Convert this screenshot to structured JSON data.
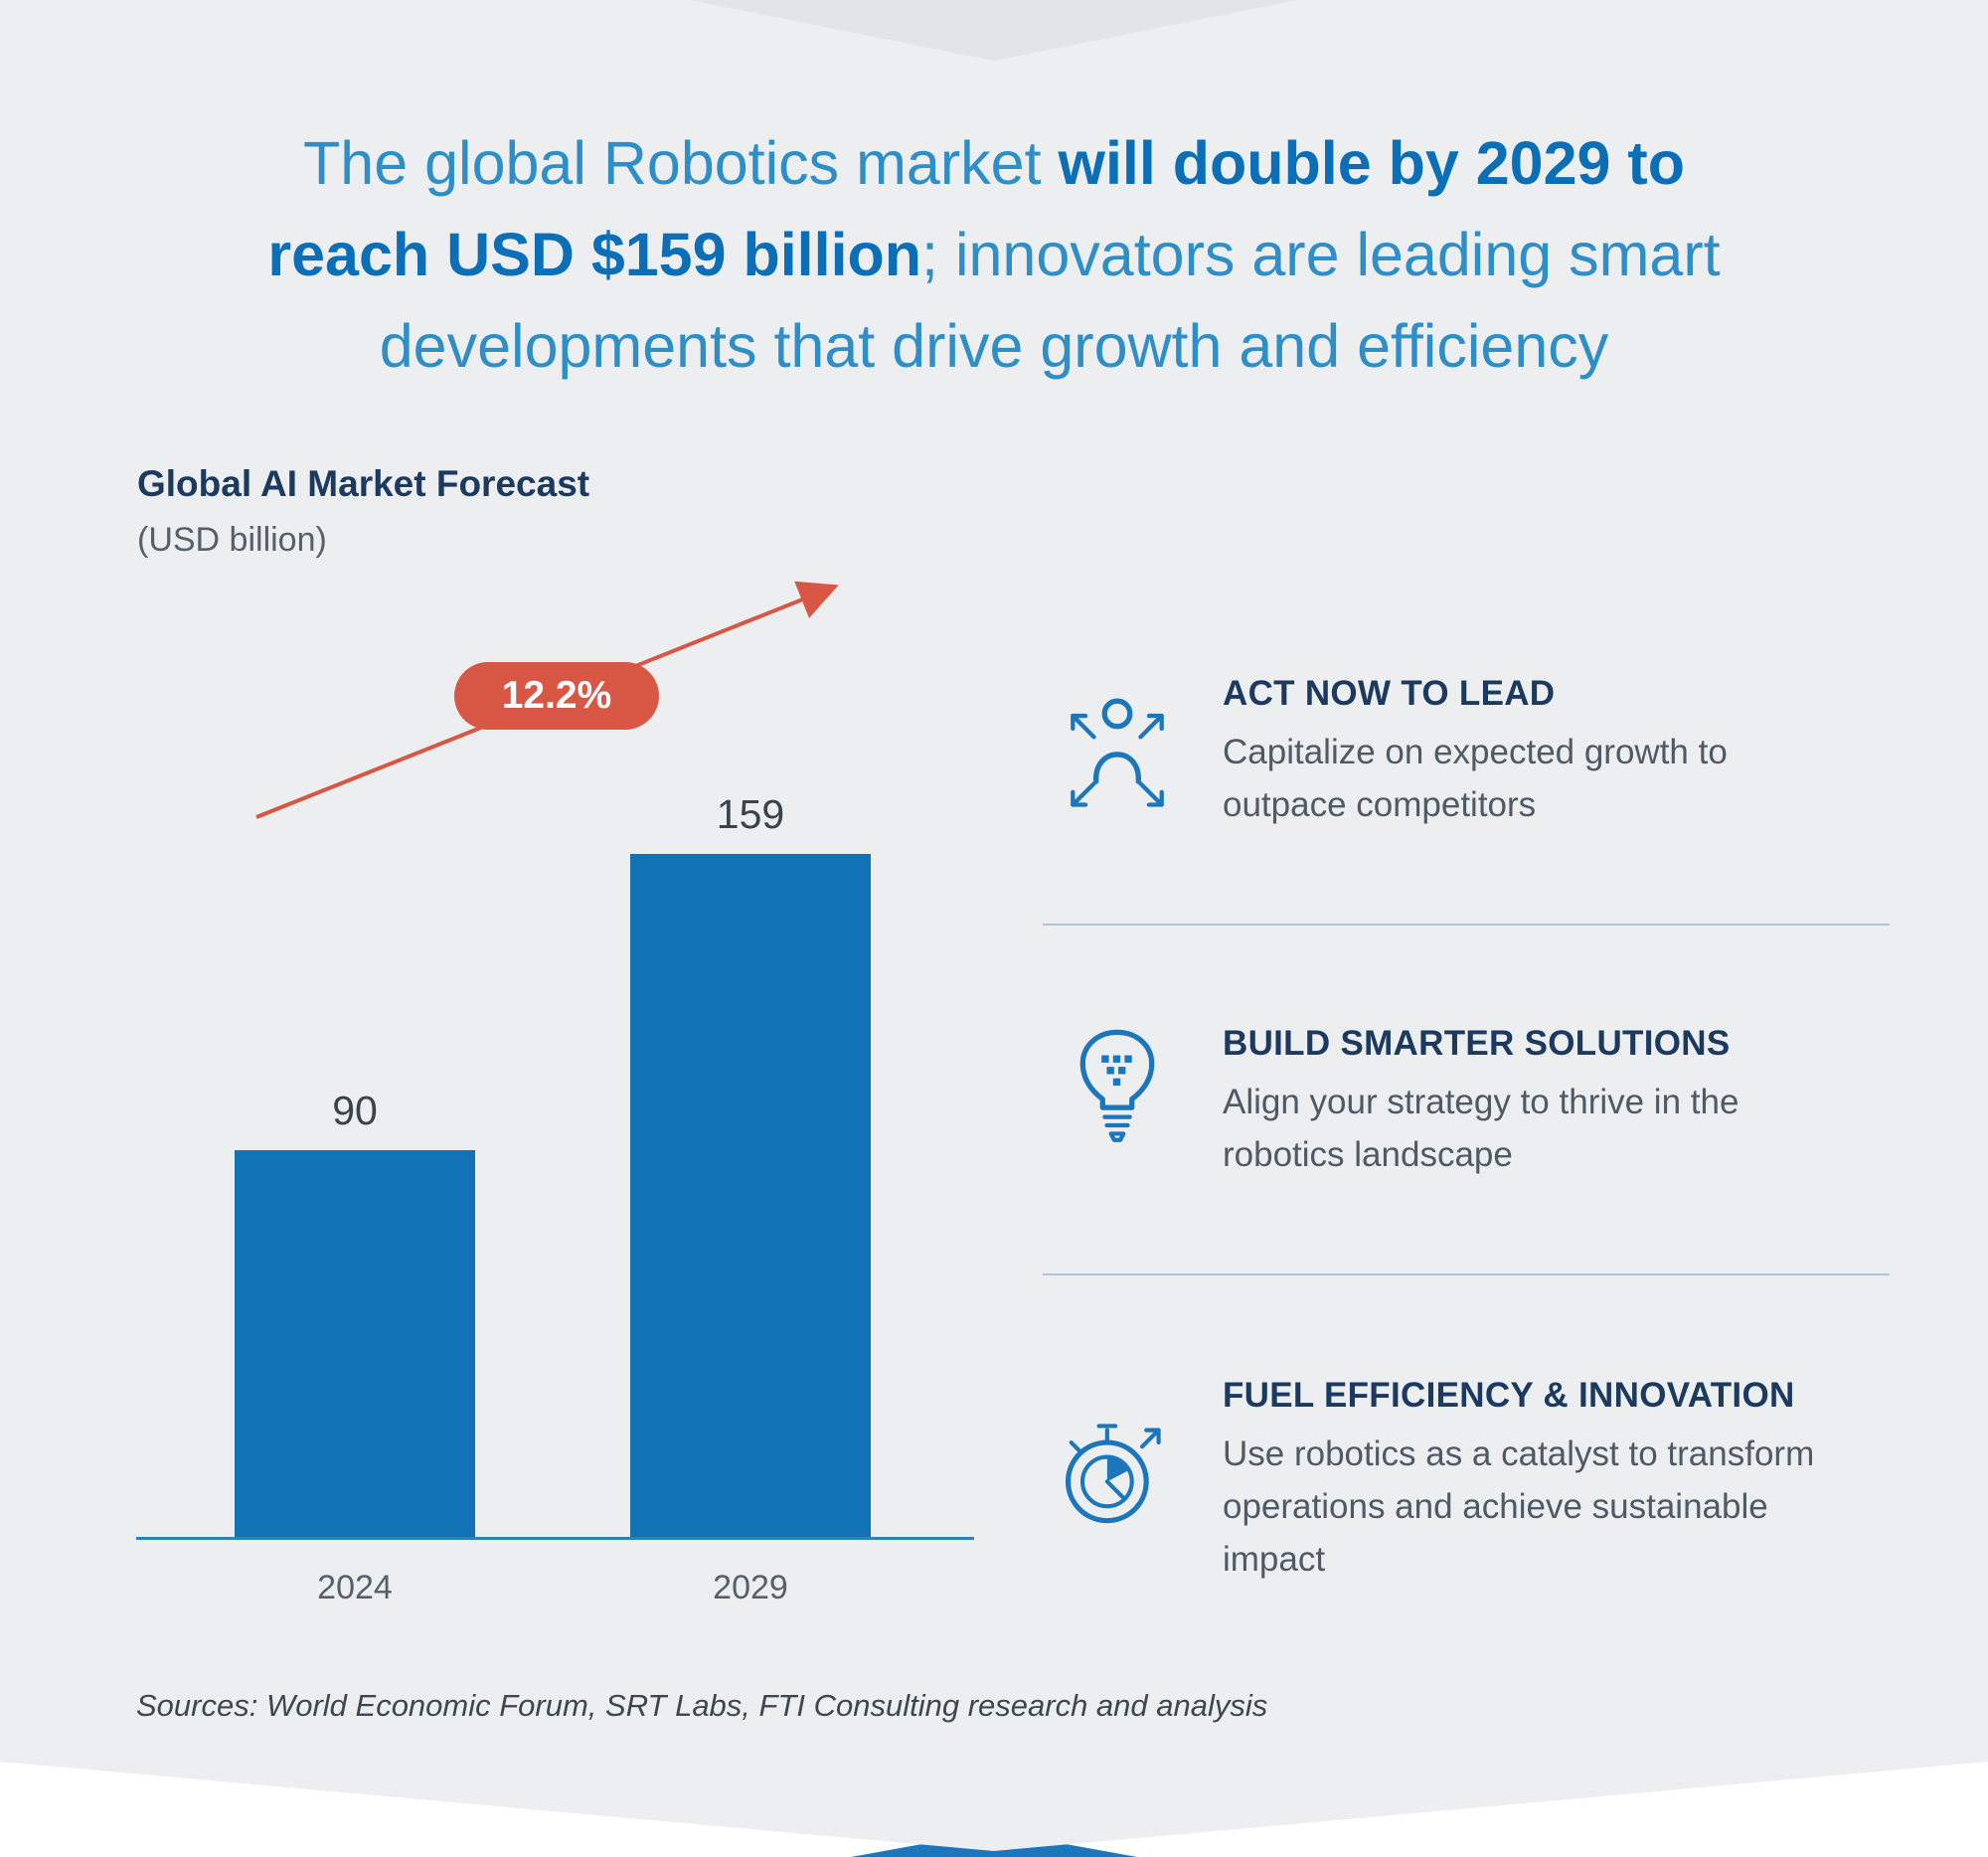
{
  "headline": {
    "line1_regular": "The global Robotics market ",
    "line1_bold": "will double by 2029 to",
    "line2_bold": "reach USD $159 billion",
    "line2_regular": "; innovators are leading smart",
    "line3": "developments that drive growth and efficiency"
  },
  "chart_data": {
    "type": "bar",
    "title": "Global AI Market Forecast",
    "subtitle": "(USD billion)",
    "categories": [
      "2024",
      "2029"
    ],
    "values": [
      90,
      159
    ],
    "growth_label": "12.2%",
    "ylim": [
      0,
      170
    ],
    "grid": false,
    "legend_position": "none",
    "bar_color": "#1173b5",
    "accent_color": "#d75744"
  },
  "benefits": [
    {
      "icon": "person-expanding-arrows-icon",
      "title": "ACT NOW TO LEAD",
      "body": "Capitalize on expected growth to outpace competitors"
    },
    {
      "icon": "lightbulb-circuit-icon",
      "title": "BUILD SMARTER SOLUTIONS",
      "body": "Align your strategy to thrive in the robotics landscape"
    },
    {
      "icon": "stopwatch-pie-icon",
      "title": "FUEL EFFICIENCY & INNOVATION",
      "body": "Use robotics as a catalyst to transform operations and achieve sustainable impact"
    }
  ],
  "sources": "Sources: World Economic Forum, SRT Labs, FTI Consulting research and analysis",
  "colors": {
    "background": "#edeef0",
    "top_chevron": "#e3e4e7",
    "headline_regular": "#2e8ec7",
    "headline_bold": "#0b6fb8",
    "heading_navy": "#1c3a60",
    "body_gray": "#4e5a65",
    "bar_blue": "#1173b5",
    "accent_red": "#d75744",
    "divider_blue": "#a9cade",
    "bottom_strip_blue": "#1b76bc"
  }
}
